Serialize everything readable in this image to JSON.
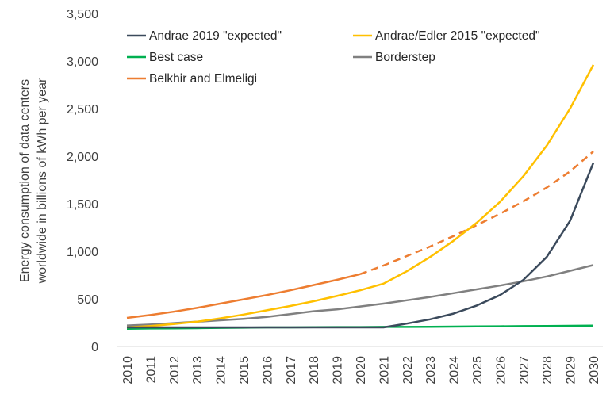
{
  "chart_data": {
    "type": "line",
    "title": "",
    "ylabel_lines": [
      "Energy consumption of data centers",
      "worldwide in billions of kWh per year"
    ],
    "xlabel": "",
    "x": [
      2010,
      2011,
      2012,
      2013,
      2014,
      2015,
      2016,
      2017,
      2018,
      2019,
      2020,
      2021,
      2022,
      2023,
      2024,
      2025,
      2026,
      2027,
      2028,
      2029,
      2030
    ],
    "x_tick_labels": [
      "2010",
      "2011",
      "2012",
      "2013",
      "2014",
      "2015",
      "2016",
      "2017",
      "2018",
      "2019",
      "2020",
      "2021",
      "2022",
      "2023",
      "2024",
      "2025",
      "2026",
      "2027",
      "2028",
      "2029",
      "2030"
    ],
    "ylim": [
      0,
      3500
    ],
    "y_ticks": [
      0,
      500,
      1000,
      1500,
      2000,
      2500,
      3000,
      3500
    ],
    "y_tick_labels": [
      "0",
      "500",
      "1,000",
      "1,500",
      "2,000",
      "2,500",
      "3,000",
      "3,500"
    ],
    "grid": false,
    "legend": "top",
    "colors": {
      "andrae2019": "#3b4a5c",
      "andrae_edler2015": "#ffc000",
      "best_case": "#00b050",
      "borderstep": "#808080",
      "belkhir": "#ed7d31"
    },
    "series": [
      {
        "key": "andrae2019",
        "name": "Andrae 2019 \"expected\"",
        "color": "#3b4a5c",
        "values": [
          200,
          200,
          200,
          200,
          200,
          200,
          200,
          200,
          200,
          200,
          200,
          200,
          240,
          285,
          345,
          430,
          540,
          700,
          940,
          1320,
          1930
        ]
      },
      {
        "key": "andrae_edler2015",
        "name": "Andrae/Edler 2015 \"expected\"",
        "color": "#ffc000",
        "values": [
          200,
          215,
          235,
          260,
          295,
          335,
          380,
          425,
          475,
          530,
          590,
          660,
          790,
          940,
          1110,
          1300,
          1520,
          1790,
          2110,
          2500,
          2960
        ]
      },
      {
        "key": "best_case",
        "name": "Best case",
        "color": "#00b050",
        "values": [
          185,
          188,
          190,
          192,
          195,
          197,
          200,
          200,
          202,
          203,
          203,
          205,
          205,
          207,
          208,
          210,
          212,
          213,
          215,
          217,
          218
        ]
      },
      {
        "key": "borderstep",
        "name": "Borderstep",
        "color": "#808080",
        "values": [
          220,
          230,
          245,
          260,
          275,
          290,
          310,
          340,
          370,
          390,
          420,
          450,
          485,
          520,
          560,
          600,
          640,
          685,
          735,
          795,
          855
        ]
      },
      {
        "key": "belkhir",
        "name": "Belkhir and Elmeligi",
        "color": "#ed7d31",
        "values": [
          300,
          330,
          365,
          405,
          450,
          495,
          540,
          590,
          645,
          700,
          760,
          850,
          950,
          1050,
          1160,
          1275,
          1395,
          1525,
          1670,
          1840,
          2050
        ],
        "dashed_from": 2020
      }
    ]
  }
}
